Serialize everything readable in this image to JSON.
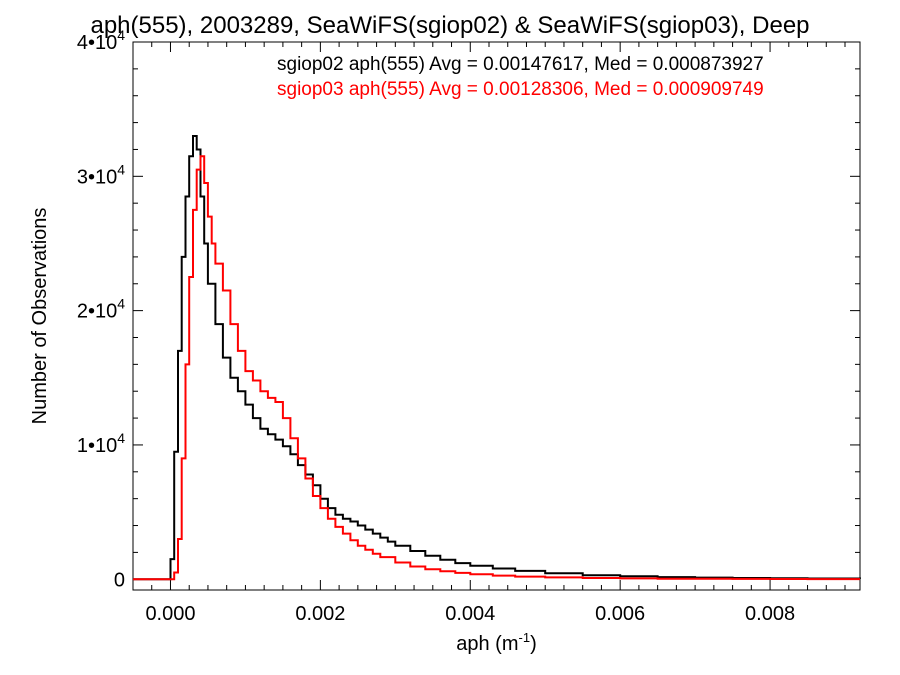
{
  "chart_data": {
    "type": "line",
    "title": "aph(555), 2003289, SeaWiFS(sgiop02) & SeaWiFS(sgiop03), Deep",
    "xlabel": "aph (m",
    "xlabel_sup": "-1",
    "xlabel_tail": ")",
    "ylabel": "Number of Observations",
    "xlim": [
      -0.0005,
      0.0092
    ],
    "ylim": [
      -800,
      40000
    ],
    "x_ticks": [
      {
        "value": 0.0,
        "label": "0.000"
      },
      {
        "value": 0.002,
        "label": "0.002"
      },
      {
        "value": 0.004,
        "label": "0.004"
      },
      {
        "value": 0.006,
        "label": "0.006"
      },
      {
        "value": 0.008,
        "label": "0.008"
      }
    ],
    "y_ticks": [
      {
        "value": 0,
        "label": "0",
        "sup": ""
      },
      {
        "value": 10000,
        "label": "1•10",
        "sup": "4"
      },
      {
        "value": 20000,
        "label": "2•10",
        "sup": "4"
      },
      {
        "value": 30000,
        "label": "3•10",
        "sup": "4"
      },
      {
        "value": 40000,
        "label": "4•10",
        "sup": "4"
      }
    ],
    "grid": false,
    "legend_position": "top-right",
    "series": [
      {
        "name": "sgiop02 aph(555) Avg = 0.00147617, Med = 0.000873927",
        "color": "#000000",
        "x": [
          -0.0005,
          -0.0001,
          0.0,
          5e-05,
          0.0001,
          0.00015,
          0.0002,
          0.00025,
          0.0003,
          0.00035,
          0.0004,
          0.00045,
          0.0005,
          0.0006,
          0.0007,
          0.0008,
          0.0009,
          0.001,
          0.0011,
          0.0012,
          0.0013,
          0.0014,
          0.0015,
          0.0016,
          0.0017,
          0.0018,
          0.0019,
          0.002,
          0.0021,
          0.0022,
          0.0023,
          0.0024,
          0.0025,
          0.0026,
          0.0027,
          0.0028,
          0.0029,
          0.003,
          0.0032,
          0.0034,
          0.0036,
          0.0038,
          0.004,
          0.0043,
          0.0046,
          0.005,
          0.0055,
          0.006,
          0.0065,
          0.007,
          0.0075,
          0.008,
          0.0085,
          0.0092
        ],
        "values": [
          0,
          0,
          1500,
          9500,
          17000,
          24000,
          28500,
          31500,
          33000,
          32000,
          28500,
          25000,
          22000,
          19000,
          16500,
          15000,
          14000,
          13000,
          12000,
          11200,
          10800,
          10400,
          9900,
          9300,
          8500,
          7800,
          7000,
          6000,
          5300,
          4800,
          4500,
          4300,
          4000,
          3700,
          3400,
          3100,
          2800,
          2500,
          2100,
          1750,
          1450,
          1200,
          1000,
          800,
          620,
          450,
          300,
          220,
          160,
          120,
          90,
          70,
          55,
          40
        ]
      },
      {
        "name": "sgiop03 aph(555) Avg = 0.00128306, Med = 0.000909749",
        "color": "#ff0000",
        "x": [
          -0.0005,
          0.0,
          5e-05,
          0.0001,
          0.00015,
          0.0002,
          0.00025,
          0.0003,
          0.00035,
          0.0004,
          0.00045,
          0.0005,
          0.00055,
          0.0006,
          0.0007,
          0.0008,
          0.0009,
          0.001,
          0.0011,
          0.0012,
          0.0013,
          0.0014,
          0.0015,
          0.0016,
          0.0017,
          0.0018,
          0.0019,
          0.002,
          0.0021,
          0.0022,
          0.0023,
          0.0024,
          0.0025,
          0.0026,
          0.0027,
          0.0028,
          0.003,
          0.0032,
          0.0034,
          0.0036,
          0.0038,
          0.004,
          0.0043,
          0.0046,
          0.005,
          0.0055,
          0.006,
          0.0065,
          0.007,
          0.0075,
          0.008,
          0.0085,
          0.0092
        ],
        "values": [
          0,
          0,
          500,
          3000,
          9000,
          16000,
          22500,
          27500,
          30500,
          31500,
          29500,
          27000,
          25000,
          23500,
          21500,
          19000,
          17000,
          15500,
          14800,
          14000,
          13500,
          13200,
          12000,
          10500,
          9000,
          7500,
          6200,
          5300,
          4500,
          3900,
          3400,
          2900,
          2500,
          2200,
          1900,
          1650,
          1250,
          950,
          750,
          600,
          470,
          370,
          270,
          200,
          140,
          95,
          65,
          45,
          32,
          24,
          18,
          13,
          9
        ]
      }
    ]
  }
}
